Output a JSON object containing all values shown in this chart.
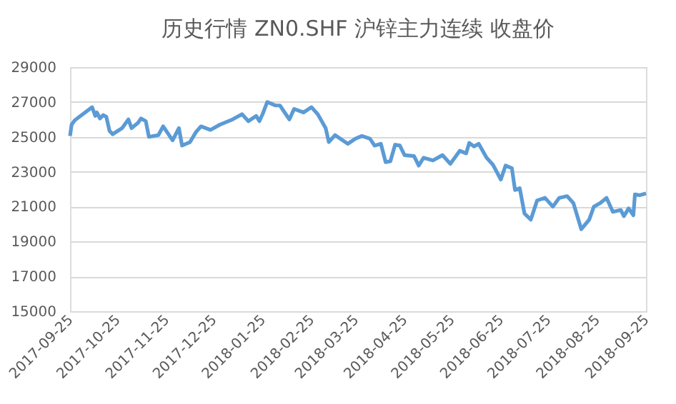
{
  "chart_data": {
    "type": "line",
    "title": "历史行情 ZN0.SHF 沪锌主力连续 收盘价",
    "x": [
      "2017-09-25",
      "2017-09-26",
      "2017-09-28",
      "2017-10-09",
      "2017-10-11",
      "2017-10-12",
      "2017-10-14",
      "2017-10-16",
      "2017-10-18",
      "2017-10-20",
      "2017-10-22",
      "2017-10-28",
      "2017-11-01",
      "2017-11-03",
      "2017-11-07",
      "2017-11-09",
      "2017-11-12",
      "2017-11-14",
      "2017-11-20",
      "2017-11-23",
      "2017-11-29",
      "2017-12-03",
      "2017-12-05",
      "2017-12-10",
      "2017-12-14",
      "2017-12-17",
      "2017-12-23",
      "2017-12-29",
      "2018-01-06",
      "2018-01-12",
      "2018-01-16",
      "2018-01-21",
      "2018-01-23",
      "2018-01-25",
      "2018-01-28",
      "2018-02-02",
      "2018-02-05",
      "2018-02-11",
      "2018-02-14",
      "2018-02-20",
      "2018-02-25",
      "2018-03-01",
      "2018-03-06",
      "2018-03-08",
      "2018-03-12",
      "2018-03-20",
      "2018-03-25",
      "2018-03-29",
      "2018-04-03",
      "2018-04-06",
      "2018-04-10",
      "2018-04-13",
      "2018-04-16",
      "2018-04-19",
      "2018-04-22",
      "2018-04-25",
      "2018-05-01",
      "2018-05-04",
      "2018-05-07",
      "2018-05-13",
      "2018-05-19",
      "2018-05-24",
      "2018-05-30",
      "2018-06-03",
      "2018-06-05",
      "2018-06-08",
      "2018-06-11",
      "2018-06-16",
      "2018-06-20",
      "2018-06-25",
      "2018-06-28",
      "2018-07-02",
      "2018-07-04",
      "2018-07-07",
      "2018-07-10",
      "2018-07-14",
      "2018-07-18",
      "2018-07-23",
      "2018-07-28",
      "2018-08-01",
      "2018-08-06",
      "2018-08-10",
      "2018-08-15",
      "2018-08-20",
      "2018-08-23",
      "2018-08-27",
      "2018-08-31",
      "2018-09-04",
      "2018-09-09",
      "2018-09-11",
      "2018-09-14",
      "2018-09-17",
      "2018-09-18",
      "2018-09-21",
      "2018-09-25"
    ],
    "series": [
      {
        "color": "#5b9bd5",
        "values": [
          25050,
          25700,
          25950,
          26700,
          26200,
          26400,
          26050,
          26250,
          26150,
          25350,
          25150,
          25500,
          26000,
          25500,
          25800,
          26050,
          25900,
          25000,
          25100,
          25600,
          24800,
          25500,
          24500,
          24700,
          25300,
          25600,
          25400,
          25700,
          26000,
          26300,
          25900,
          26200,
          25900,
          26300,
          27000,
          26800,
          26800,
          26000,
          26600,
          26400,
          26700,
          26300,
          25500,
          24700,
          25100,
          24600,
          24900,
          25050,
          24900,
          24500,
          24600,
          23550,
          23600,
          24550,
          24500,
          23950,
          23900,
          23350,
          23800,
          23650,
          23950,
          23450,
          24200,
          24050,
          24650,
          24450,
          24600,
          23800,
          23400,
          22550,
          23350,
          23200,
          21950,
          22050,
          20600,
          20250,
          21350,
          21500,
          21000,
          21500,
          21600,
          21200,
          19700,
          20250,
          21000,
          21200,
          21500,
          20700,
          20800,
          20450,
          20900,
          20500,
          21700,
          21650,
          21750
        ]
      }
    ],
    "xlim": [
      "2017-09-25",
      "2018-09-25"
    ],
    "xticks": [
      "2017-09-25",
      "2017-10-25",
      "2017-11-25",
      "2017-12-25",
      "2018-01-25",
      "2018-02-25",
      "2018-03-25",
      "2018-04-25",
      "2018-05-25",
      "2018-06-25",
      "2018-07-25",
      "2018-08-25",
      "2018-09-25"
    ],
    "ylim": [
      15000,
      29000
    ],
    "yticks": [
      15000,
      17000,
      19000,
      21000,
      23000,
      25000,
      27000,
      29000
    ],
    "grid": "y",
    "legend": false,
    "marker": "none",
    "line_style": "solid"
  }
}
